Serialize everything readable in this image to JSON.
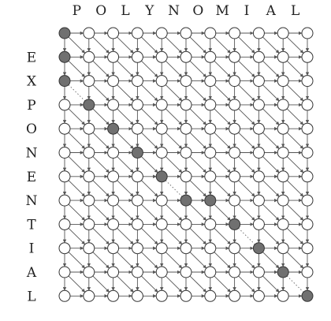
{
  "top_word": [
    "P",
    "O",
    "L",
    "Y",
    "N",
    "O",
    "M",
    "I",
    "A",
    "L"
  ],
  "side_word": [
    "E",
    "X",
    "P",
    "O",
    "N",
    "E",
    "N",
    "T",
    "I",
    "A",
    "L"
  ],
  "colors": {
    "node_fill": "#ffffff",
    "node_stroke": "#333333",
    "highlight_fill": "#707070",
    "edge_stroke": "#555555",
    "diagonal_stroke": "#666666"
  },
  "highlighted_nodes": [
    [
      0,
      0
    ],
    [
      1,
      0
    ],
    [
      2,
      0
    ],
    [
      3,
      1
    ],
    [
      4,
      2
    ],
    [
      5,
      3
    ],
    [
      6,
      4
    ],
    [
      7,
      5
    ],
    [
      7,
      6
    ],
    [
      8,
      7
    ],
    [
      9,
      8
    ],
    [
      10,
      9
    ],
    [
      11,
      10
    ]
  ],
  "dotted_path_edges": [
    [
      [
        2,
        0
      ],
      [
        3,
        1
      ]
    ],
    [
      [
        6,
        4
      ],
      [
        7,
        5
      ]
    ],
    [
      [
        8,
        7
      ],
      [
        9,
        8
      ]
    ],
    [
      [
        10,
        9
      ],
      [
        11,
        10
      ]
    ]
  ]
}
